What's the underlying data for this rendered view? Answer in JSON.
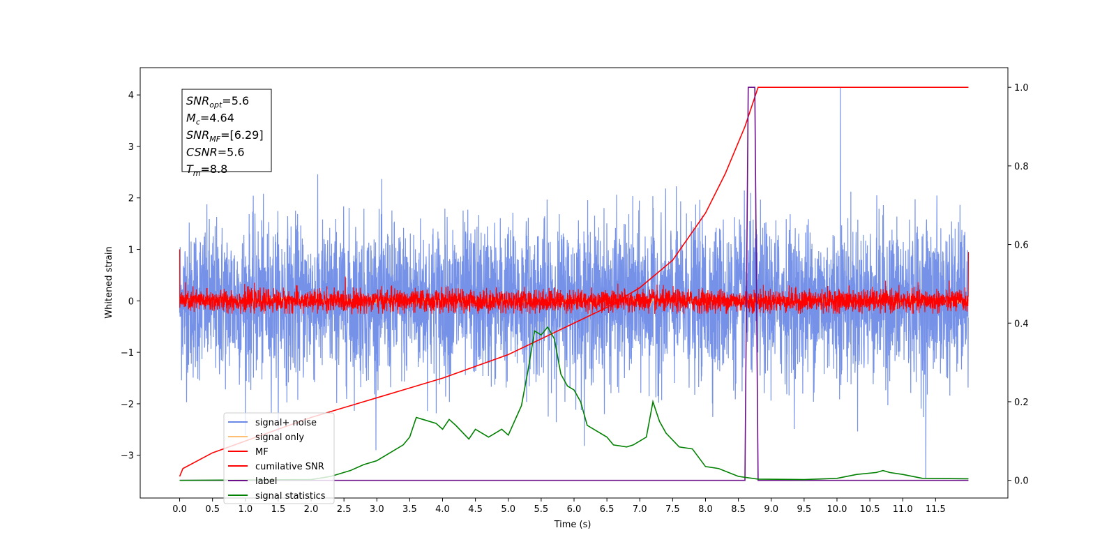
{
  "chart_data": {
    "type": "line",
    "xlabel": "Time (s)",
    "ylabel": "Whitened strain",
    "x_ticks": [
      0.0,
      0.5,
      1.0,
      1.5,
      2.0,
      2.5,
      3.0,
      3.5,
      4.0,
      4.5,
      5.0,
      5.5,
      6.0,
      6.5,
      7.0,
      7.5,
      8.0,
      8.5,
      9.0,
      9.5,
      10.0,
      10.5,
      11.0,
      11.5
    ],
    "x_tick_labels": [
      "0.0",
      "0.5",
      "1.0",
      "1.5",
      "2.0",
      "2.5",
      "3.0",
      "3.5",
      "4.0",
      "4.5",
      "5.0",
      "5.5",
      "6.0",
      "6.5",
      "7.0",
      "7.5",
      "8.0",
      "8.5",
      "9.0",
      "9.5",
      "10.0",
      "10.5",
      "11.0",
      "11.5"
    ],
    "xlim": [
      -0.6,
      12.6
    ],
    "y_left_ticks": [
      -3,
      -2,
      -1,
      0,
      1,
      2,
      3,
      4
    ],
    "y_left_tick_labels": [
      "−3",
      "−2",
      "−1",
      "0",
      "1",
      "2",
      "3",
      "4"
    ],
    "ylim_left": [
      -3.83,
      4.53
    ],
    "y_right_ticks": [
      0.0,
      0.2,
      0.4,
      0.6,
      0.8,
      1.0
    ],
    "y_right_tick_labels": [
      "0.0",
      "0.2",
      "0.4",
      "0.6",
      "0.8",
      "1.0"
    ],
    "ylim_right": [
      -0.045,
      1.05
    ],
    "grid": false,
    "legend": {
      "placement": "lower-left",
      "entries": [
        {
          "label": "signal+ noise",
          "color": "#6a89e6"
        },
        {
          "label": "signal only",
          "color": "#ffbf72"
        },
        {
          "label": "MF",
          "color": "#ff0000"
        },
        {
          "label": "cumilative SNR",
          "color": "#ff0000"
        },
        {
          "label": "label",
          "color": "#6b0f8a"
        },
        {
          "label": "signal statistics",
          "color": "#008000"
        }
      ]
    },
    "annotation": {
      "lines": [
        {
          "base": "SNR",
          "sub": "opt",
          "value": "=5.6"
        },
        {
          "base": "M",
          "sub": "c",
          "value": "=4.64"
        },
        {
          "base": "SNR",
          "sub": "MF",
          "value": "=[6.29]"
        },
        {
          "base": "CSNR",
          "sub": "",
          "value": "=5.6"
        },
        {
          "base": "T",
          "sub": "m",
          "value": "=8.8"
        }
      ]
    },
    "series": [
      {
        "name": "signal+ noise",
        "axis": "left",
        "color": "#6a89e6",
        "kind": "noise",
        "x_range": [
          0.0,
          12.0
        ],
        "amplitude_std": 0.75,
        "extreme_points": [
          {
            "x": 10.05,
            "y": 4.15
          },
          {
            "x": 11.35,
            "y": -3.45
          }
        ]
      },
      {
        "name": "signal only",
        "axis": "left",
        "color": "#ffbf72",
        "kind": "noise",
        "x_range": [
          0.0,
          12.0
        ],
        "amplitude_std": 0.03
      },
      {
        "name": "MF",
        "axis": "left",
        "color": "#ff0000",
        "kind": "noise",
        "x_range": [
          0.0,
          12.0
        ],
        "amplitude_std": 0.11,
        "edge_values": [
          {
            "x": 0.0,
            "y": 1.0
          },
          {
            "x": 12.0,
            "y": 0.95
          }
        ]
      },
      {
        "name": "cumilative SNR",
        "axis": "right",
        "color": "#ff0000",
        "kind": "line",
        "x": [
          0.0,
          0.05,
          0.5,
          1.0,
          1.5,
          2.0,
          2.5,
          3.0,
          3.5,
          4.0,
          4.5,
          5.0,
          5.5,
          6.0,
          6.5,
          7.0,
          7.5,
          8.0,
          8.3,
          8.6,
          8.8,
          9.0,
          12.0
        ],
        "y": [
          0.01,
          0.03,
          0.07,
          0.1,
          0.13,
          0.16,
          0.185,
          0.21,
          0.235,
          0.26,
          0.29,
          0.32,
          0.36,
          0.4,
          0.44,
          0.49,
          0.56,
          0.68,
          0.78,
          0.9,
          1.0,
          1.0,
          1.0
        ]
      },
      {
        "name": "label",
        "axis": "right",
        "color": "#6b0f8a",
        "kind": "line",
        "x": [
          0.0,
          8.6,
          8.65,
          8.75,
          8.8,
          12.0
        ],
        "y": [
          0.0,
          0.0,
          1.0,
          1.0,
          0.0,
          0.0
        ]
      },
      {
        "name": "signal statistics",
        "axis": "right",
        "color": "#008000",
        "kind": "line",
        "x": [
          0.0,
          2.0,
          2.3,
          2.6,
          2.8,
          3.0,
          3.2,
          3.4,
          3.5,
          3.6,
          3.7,
          3.9,
          4.0,
          4.1,
          4.2,
          4.4,
          4.5,
          4.7,
          4.8,
          4.9,
          5.0,
          5.2,
          5.3,
          5.4,
          5.5,
          5.6,
          5.7,
          5.8,
          5.9,
          6.0,
          6.1,
          6.2,
          6.3,
          6.5,
          6.6,
          6.8,
          6.9,
          7.0,
          7.1,
          7.2,
          7.3,
          7.4,
          7.6,
          7.8,
          8.0,
          8.2,
          8.5,
          8.8,
          9.5,
          10.0,
          10.3,
          10.6,
          10.7,
          10.8,
          11.0,
          11.3,
          12.0
        ],
        "y": [
          0.0,
          0.002,
          0.01,
          0.025,
          0.04,
          0.05,
          0.07,
          0.09,
          0.11,
          0.16,
          0.155,
          0.145,
          0.13,
          0.155,
          0.14,
          0.105,
          0.13,
          0.11,
          0.12,
          0.13,
          0.115,
          0.19,
          0.28,
          0.38,
          0.37,
          0.39,
          0.36,
          0.27,
          0.24,
          0.23,
          0.2,
          0.14,
          0.13,
          0.11,
          0.09,
          0.085,
          0.09,
          0.1,
          0.11,
          0.2,
          0.15,
          0.12,
          0.085,
          0.08,
          0.035,
          0.03,
          0.01,
          0.003,
          0.002,
          0.005,
          0.015,
          0.02,
          0.025,
          0.02,
          0.015,
          0.005,
          0.004
        ]
      }
    ]
  }
}
